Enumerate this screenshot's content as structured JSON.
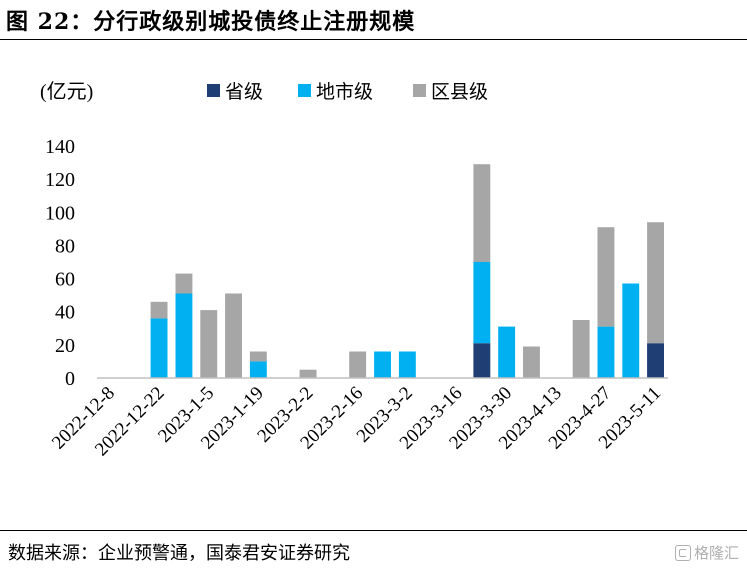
{
  "title": "图 22：分行政级别城投债终止注册规模",
  "source": "数据来源：企业预警通，国泰君安证券研究",
  "watermark": "格隆汇",
  "colors": {
    "provincial": "#1F3E74",
    "municipal": "#00B0F0",
    "county": "#A6A6A6"
  },
  "chart_data": {
    "type": "bar",
    "stacked": true,
    "ylabel": "(亿元)",
    "ylim": [
      0,
      140
    ],
    "yticks": [
      0,
      20,
      40,
      60,
      80,
      100,
      120,
      140
    ],
    "grid": false,
    "legend_position": "top",
    "categories": [
      "2022-12-8",
      "2022-12-15",
      "2022-12-22",
      "2022-12-29",
      "2023-1-5",
      "2023-1-12",
      "2023-1-19",
      "2023-1-26",
      "2023-2-2",
      "2023-2-9",
      "2023-2-16",
      "2023-2-23",
      "2023-3-2",
      "2023-3-9",
      "2023-3-16",
      "2023-3-23",
      "2023-3-30",
      "2023-4-6",
      "2023-4-13",
      "2023-4-20",
      "2023-4-27",
      "2023-5-4",
      "2023-5-11"
    ],
    "tick_labels": [
      "2022-12-8",
      "2022-12-22",
      "2023-1-5",
      "2023-1-19",
      "2023-2-2",
      "2023-2-16",
      "2023-3-2",
      "2023-3-16",
      "2023-3-30",
      "2023-4-13",
      "2023-4-27",
      "2023-5-11"
    ],
    "series": [
      {
        "name": "省级",
        "values": [
          0,
          0,
          0,
          0,
          0,
          0,
          0,
          0,
          0,
          0,
          0,
          0,
          0,
          0,
          0,
          21,
          0,
          0,
          0,
          0,
          0,
          0,
          21
        ]
      },
      {
        "name": "地市级",
        "values": [
          0,
          0,
          36,
          51,
          0,
          0,
          10,
          0,
          0,
          0,
          0,
          16,
          16,
          0,
          0,
          49,
          31,
          0,
          0,
          0,
          31,
          57,
          0
        ]
      },
      {
        "name": "区县级",
        "values": [
          0,
          0,
          10,
          12,
          41,
          51,
          6,
          0,
          5,
          0,
          16,
          0,
          0,
          0,
          0,
          59,
          0,
          19,
          0,
          35,
          60,
          0,
          73
        ]
      }
    ]
  }
}
